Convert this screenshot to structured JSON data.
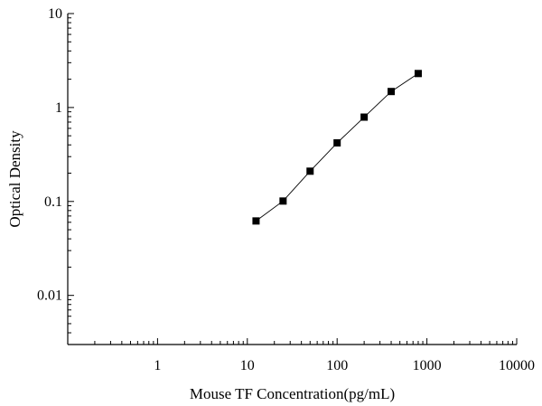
{
  "chart_data": {
    "type": "scatter",
    "xlabel": "Mouse TF Concentration(pg/mL)",
    "ylabel": "Optical Density",
    "xscale": "log",
    "yscale": "log",
    "xlim": [
      0.1,
      10000
    ],
    "ylim": [
      0.003,
      10
    ],
    "xticks": [
      1,
      10,
      100,
      1000,
      10000
    ],
    "xtick_labels": [
      "1",
      "10",
      "100",
      "1000",
      "10000"
    ],
    "yticks": [
      0.01,
      0.1,
      1,
      10
    ],
    "ytick_labels": [
      "0.01",
      "0.1",
      "1",
      "10"
    ],
    "grid": false,
    "series": [
      {
        "x": [
          12.5,
          25,
          50,
          100,
          200,
          400,
          800
        ],
        "y": [
          0.062,
          0.101,
          0.21,
          0.42,
          0.79,
          1.48,
          2.3
        ],
        "marker": "square",
        "color": "#000000",
        "connected": true
      }
    ]
  }
}
